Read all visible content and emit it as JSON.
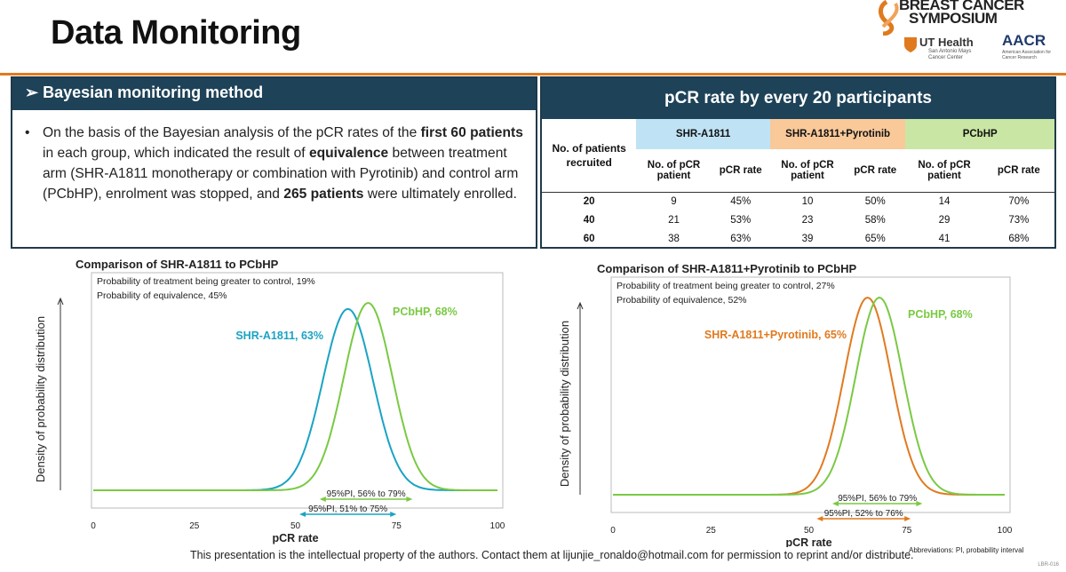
{
  "title": "Data Monitoring",
  "logo": {
    "line1": "BREAST CANCER",
    "line2": "SYMPOSIUM",
    "ut": "UT Health",
    "ut_sub": "San Antonio Mays Cancer Center",
    "aacr": "AACR",
    "aacr_sub": "American Association for Cancer Research"
  },
  "left_panel": {
    "heading": "➢ Bayesian monitoring method",
    "bullet": "•",
    "text_parts": [
      {
        "t": "On the basis of the Bayesian analysis of the pCR rates of the ",
        "b": false
      },
      {
        "t": "first 60 patients",
        "b": true
      },
      {
        "t": " in each group, which indicated the result of ",
        "b": false
      },
      {
        "t": "equivalence",
        "b": true
      },
      {
        "t": " between treatment arm (SHR-A1811 monotherapy or combination with Pyrotinib) and control arm (PCbHP), enrolment was stopped, and ",
        "b": false
      },
      {
        "t": "265 patients",
        "b": true
      },
      {
        "t": " were ultimately enrolled.",
        "b": false
      }
    ]
  },
  "table": {
    "title": "pCR rate by every 20 participants",
    "row_header": "No. of patients recruited",
    "groups": [
      "SHR-A1811",
      "SHR-A1811+Pyrotinib",
      "PCbHP"
    ],
    "sub_headers": [
      "No. of pCR patient",
      "pCR rate"
    ],
    "rows": [
      {
        "n": "20",
        "v": [
          "9",
          "45%",
          "10",
          "50%",
          "14",
          "70%"
        ]
      },
      {
        "n": "40",
        "v": [
          "21",
          "53%",
          "23",
          "58%",
          "29",
          "73%"
        ]
      },
      {
        "n": "60",
        "v": [
          "38",
          "63%",
          "39",
          "65%",
          "41",
          "68%"
        ]
      }
    ]
  },
  "chart_data": [
    {
      "type": "line",
      "title": "Comparison of SHR-A1811 to PCbHP",
      "xlabel": "pCR rate",
      "ylabel": "Density of probability distribution",
      "xlim": [
        0,
        100
      ],
      "xticks": [
        "0",
        "25",
        "50",
        "75",
        "100"
      ],
      "annotations": [
        "Probability of treatment being greater to control, 19%",
        "Probability of equivalence, 45%"
      ],
      "series": [
        {
          "name": "SHR-A1811, 63%",
          "mean": 63,
          "sd": 6.2,
          "color": "#1aa3c4"
        },
        {
          "name": "PCbHP, 68%",
          "mean": 68,
          "sd": 6.0,
          "color": "#7ac943"
        }
      ],
      "intervals": [
        {
          "label": "95%PI, 56% to 79%",
          "from": 56,
          "to": 79,
          "color": "#7ac943"
        },
        {
          "label": "95%PI, 51% to 75%",
          "from": 51,
          "to": 75,
          "color": "#1aa3c4"
        }
      ]
    },
    {
      "type": "line",
      "title": "Comparison of SHR-A1811+Pyrotinib to PCbHP",
      "xlabel": "pCR rate",
      "ylabel": "Density of probability distribution",
      "xlim": [
        0,
        100
      ],
      "xticks": [
        "0",
        "25",
        "50",
        "75",
        "100"
      ],
      "annotations": [
        "Probability of treatment being greater to control, 27%",
        "Probability of equivalence, 52%"
      ],
      "series": [
        {
          "name": "SHR-A1811+Pyrotinib, 65%",
          "mean": 65,
          "sd": 6.0,
          "color": "#e07a1f"
        },
        {
          "name": "PCbHP, 68%",
          "mean": 68,
          "sd": 6.0,
          "color": "#7ac943"
        }
      ],
      "intervals": [
        {
          "label": "95%PI, 56% to 79%",
          "from": 56,
          "to": 79,
          "color": "#7ac943"
        },
        {
          "label": "95%PI, 52% to 76%",
          "from": 52,
          "to": 76,
          "color": "#e07a1f"
        }
      ]
    }
  ],
  "footer": "This presentation is the intellectual property of the authors. Contact them at lijunjie_ronaldo@hotmail.com for permission to reprint and/or distribute.",
  "abbreviations": "Abbreviations: PI, probability interval",
  "page_code": "LBR-016"
}
